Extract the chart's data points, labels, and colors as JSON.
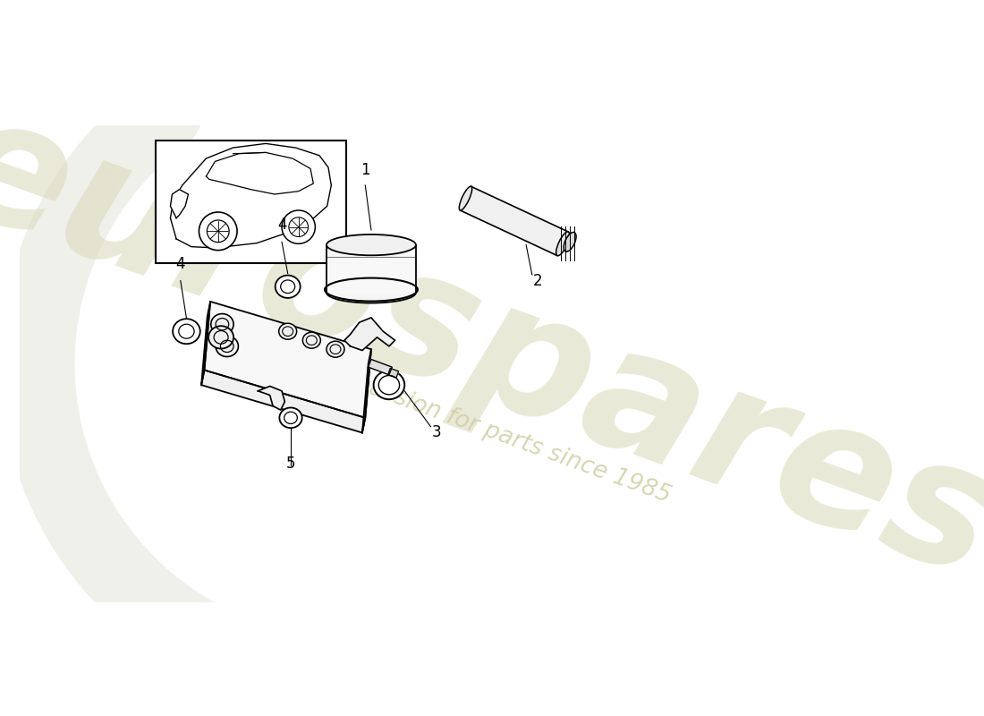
{
  "bg_color": "#ffffff",
  "watermark_color": "#d8d8b8",
  "watermark_text_color": "#d0d0a8",
  "line_color": "#000000",
  "fill_color": "#ffffff",
  "shadow_color": "#e8e8e8",
  "ann_fontsize": 10,
  "ann_color": "#000000"
}
